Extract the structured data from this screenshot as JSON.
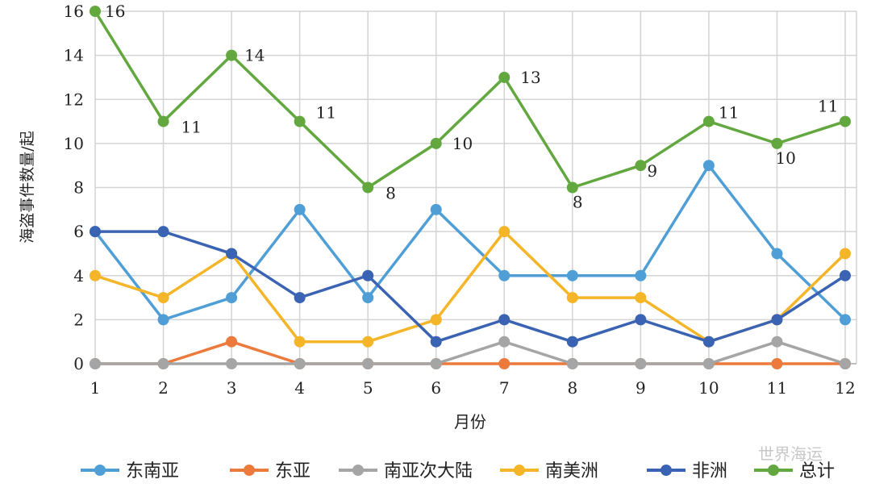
{
  "chart_data": {
    "type": "line",
    "title": "",
    "xlabel": "月份",
    "ylabel": "海盗事件数量/起",
    "x": [
      1,
      2,
      3,
      4,
      5,
      6,
      7,
      8,
      9,
      10,
      11,
      12
    ],
    "ylim": [
      0,
      16
    ],
    "yticks": [
      0,
      2,
      4,
      6,
      8,
      10,
      12,
      14,
      16
    ],
    "grid": true,
    "legend_position": "bottom",
    "series": [
      {
        "name": "东南亚",
        "color": "#4f9fd6",
        "values": [
          6,
          2,
          3,
          7,
          3,
          7,
          4,
          4,
          4,
          9,
          5,
          2
        ]
      },
      {
        "name": "东亚",
        "color": "#ec7a3c",
        "values": [
          0,
          0,
          1,
          0,
          0,
          0,
          0,
          0,
          0,
          0,
          0,
          0
        ]
      },
      {
        "name": "南亚次大陆",
        "color": "#a5a5a5",
        "values": [
          0,
          0,
          0,
          0,
          0,
          0,
          1,
          0,
          0,
          0,
          1,
          0
        ]
      },
      {
        "name": "南美洲",
        "color": "#f5b528",
        "values": [
          4,
          3,
          5,
          1,
          1,
          2,
          6,
          3,
          3,
          1,
          2,
          5
        ]
      },
      {
        "name": "非洲",
        "color": "#3b63b3",
        "values": [
          6,
          6,
          5,
          3,
          4,
          1,
          2,
          1,
          2,
          1,
          2,
          4
        ]
      },
      {
        "name": "总计",
        "color": "#62a83f",
        "values": [
          16,
          11,
          14,
          11,
          8,
          10,
          13,
          8,
          9,
          11,
          10,
          11
        ],
        "data_labels": true
      }
    ]
  },
  "watermark": "世界海运"
}
